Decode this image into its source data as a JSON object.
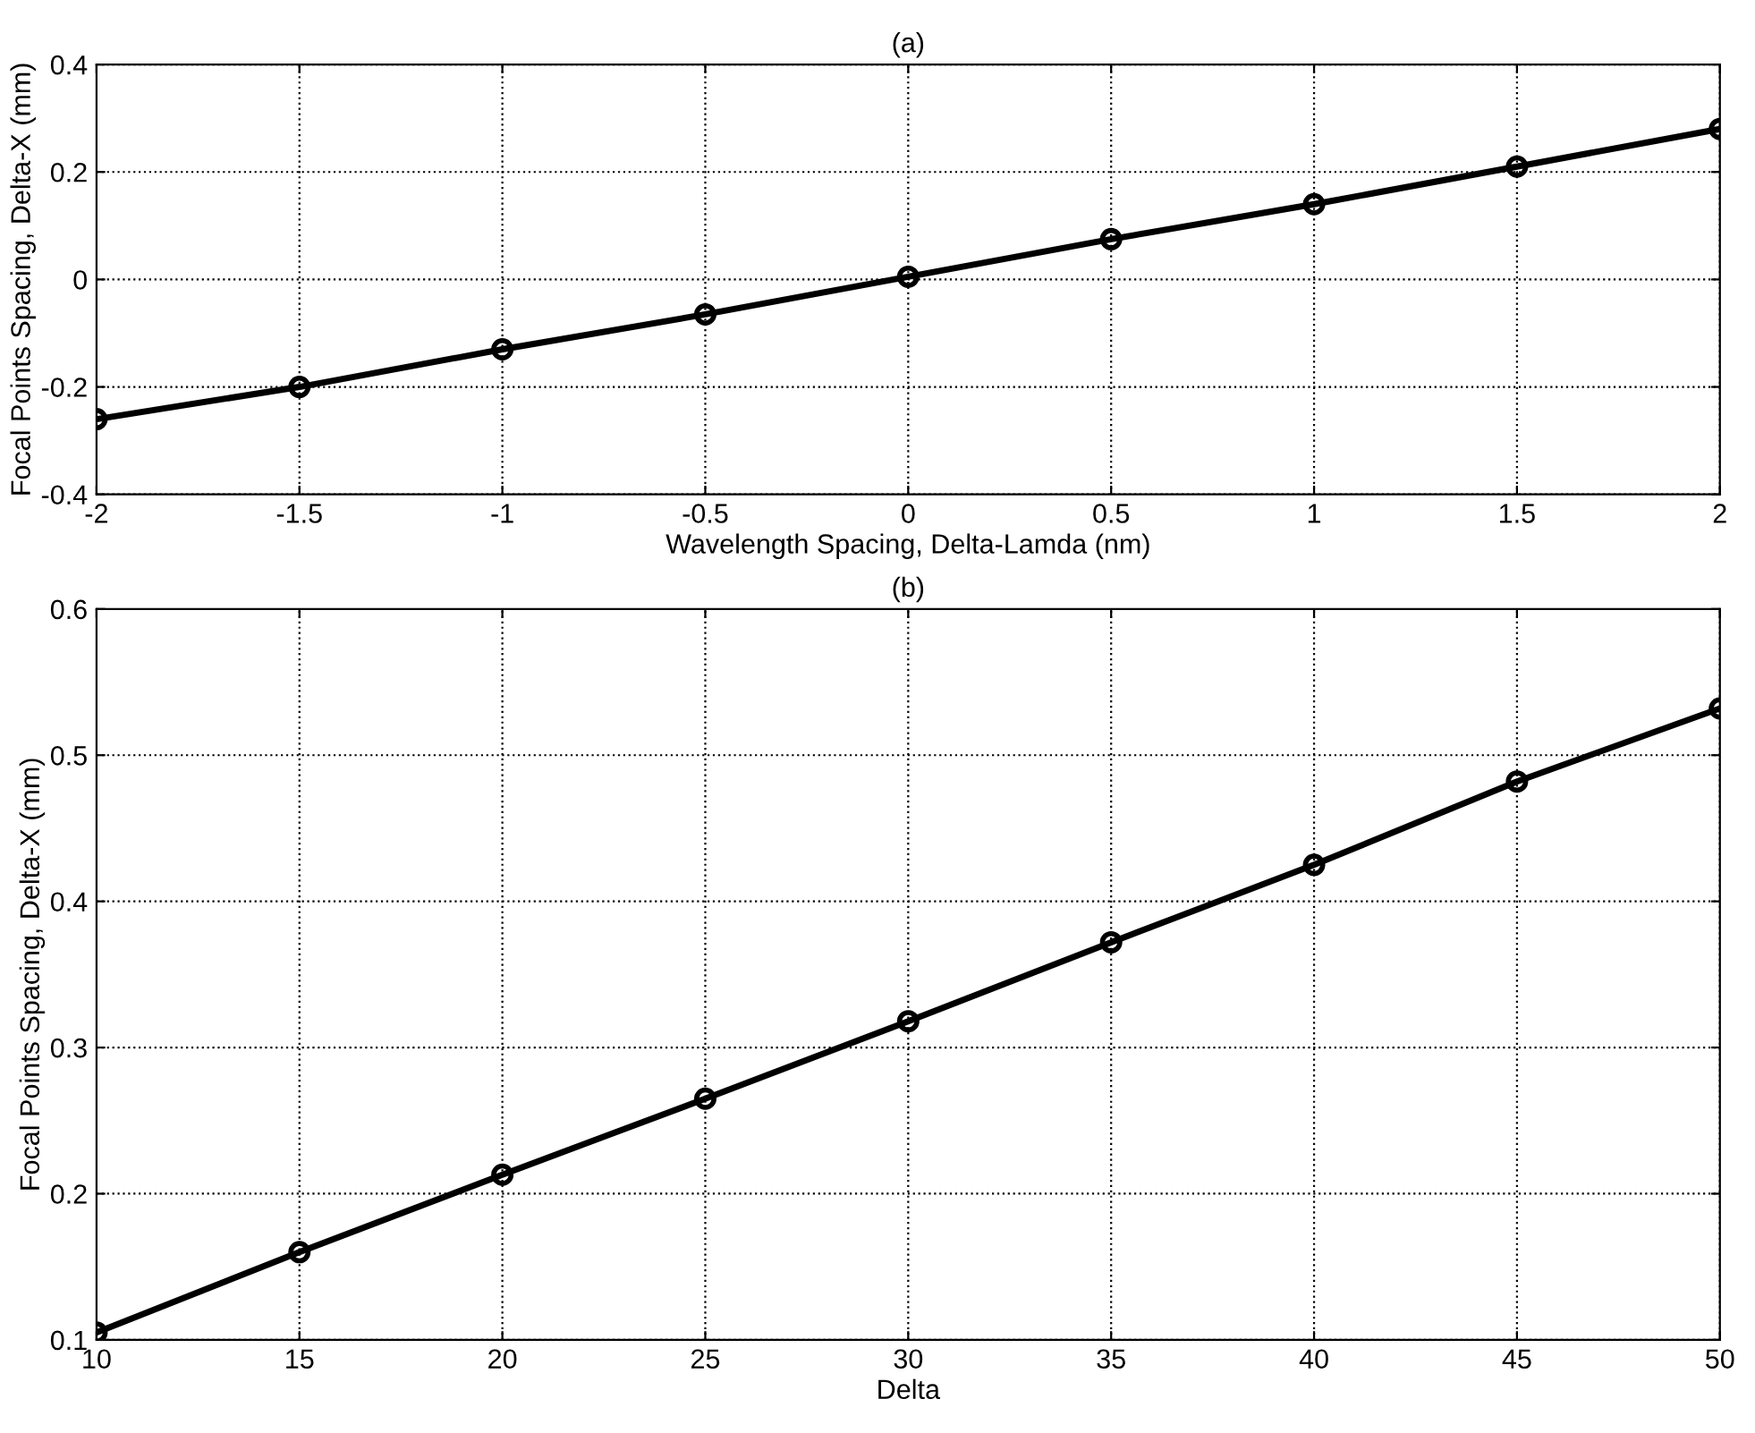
{
  "chart_data": [
    {
      "type": "line",
      "title": "(a)",
      "xlabel": "Wavelength Spacing, Delta-Lamda (nm)",
      "ylabel": "Focal Points Spacing, Delta-X (mm)",
      "x": [
        -2,
        -1.5,
        -1,
        -0.5,
        0,
        0.5,
        1,
        1.5,
        2
      ],
      "series": [
        {
          "color": "#000000",
          "values": [
            -0.26,
            -0.2,
            -0.13,
            -0.065,
            0.005,
            0.075,
            0.14,
            0.21,
            0.28
          ]
        }
      ],
      "xlim": [
        -2,
        2
      ],
      "xticks": [
        -2,
        -1.5,
        -1,
        -0.5,
        0,
        0.5,
        1,
        1.5,
        2
      ],
      "ylim": [
        -0.4,
        0.4
      ],
      "yticks": [
        -0.4,
        -0.2,
        0,
        0.2,
        0.4
      ],
      "grid": true,
      "marker": "circle",
      "line_style": "solid"
    },
    {
      "type": "line",
      "title": "(b)",
      "xlabel": "Delta",
      "ylabel": "Focal Points Spacing, Delta-X (mm)",
      "x": [
        10,
        15,
        20,
        25,
        30,
        35,
        40,
        45,
        50
      ],
      "series": [
        {
          "color": "#000000",
          "values": [
            0.105,
            0.16,
            0.213,
            0.265,
            0.318,
            0.372,
            0.425,
            0.482,
            0.532
          ]
        }
      ],
      "xlim": [
        10,
        50
      ],
      "xticks": [
        10,
        15,
        20,
        25,
        30,
        35,
        40,
        45,
        50
      ],
      "ylim": [
        0.1,
        0.6
      ],
      "yticks": [
        0.1,
        0.2,
        0.3,
        0.4,
        0.5,
        0.6
      ],
      "grid": true,
      "marker": "circle",
      "line_style": "solid"
    }
  ]
}
